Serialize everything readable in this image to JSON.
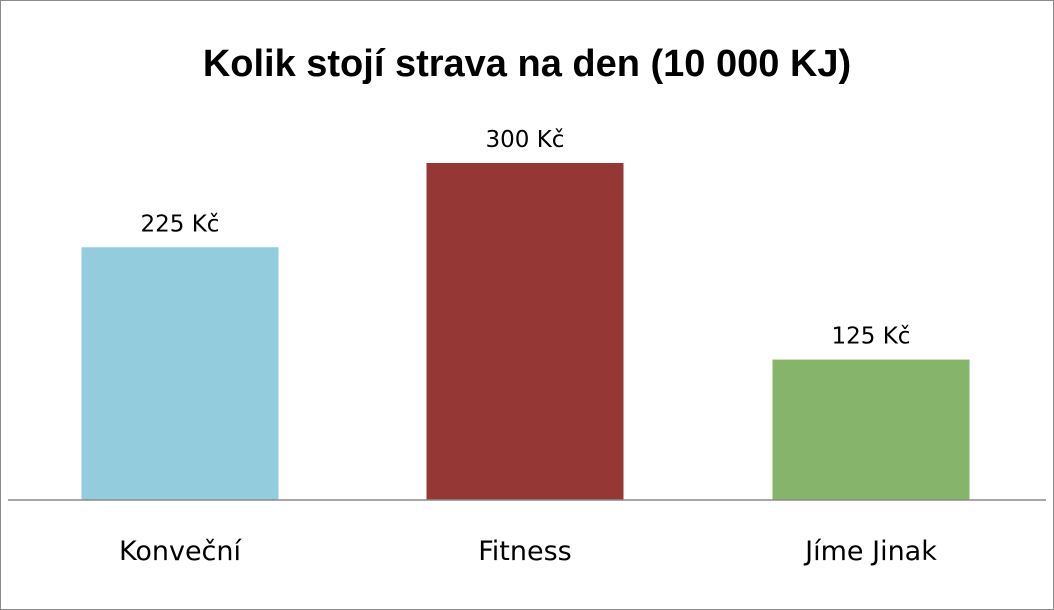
{
  "chart_data": {
    "type": "bar",
    "title": "Kolik stojí strava na den (10 000 KJ)",
    "categories": [
      "Konveční",
      "Fitness",
      "Jíme Jinak"
    ],
    "values": [
      225,
      300,
      125
    ],
    "data_labels": [
      "225 Kč",
      "300 Kč",
      "125 Kč"
    ],
    "colors": [
      "#93cddd",
      "#953735",
      "#86b46a"
    ],
    "axis_color": "#8c8c8c",
    "ylim": [
      0,
      400
    ],
    "grid": false,
    "legend": "none"
  }
}
